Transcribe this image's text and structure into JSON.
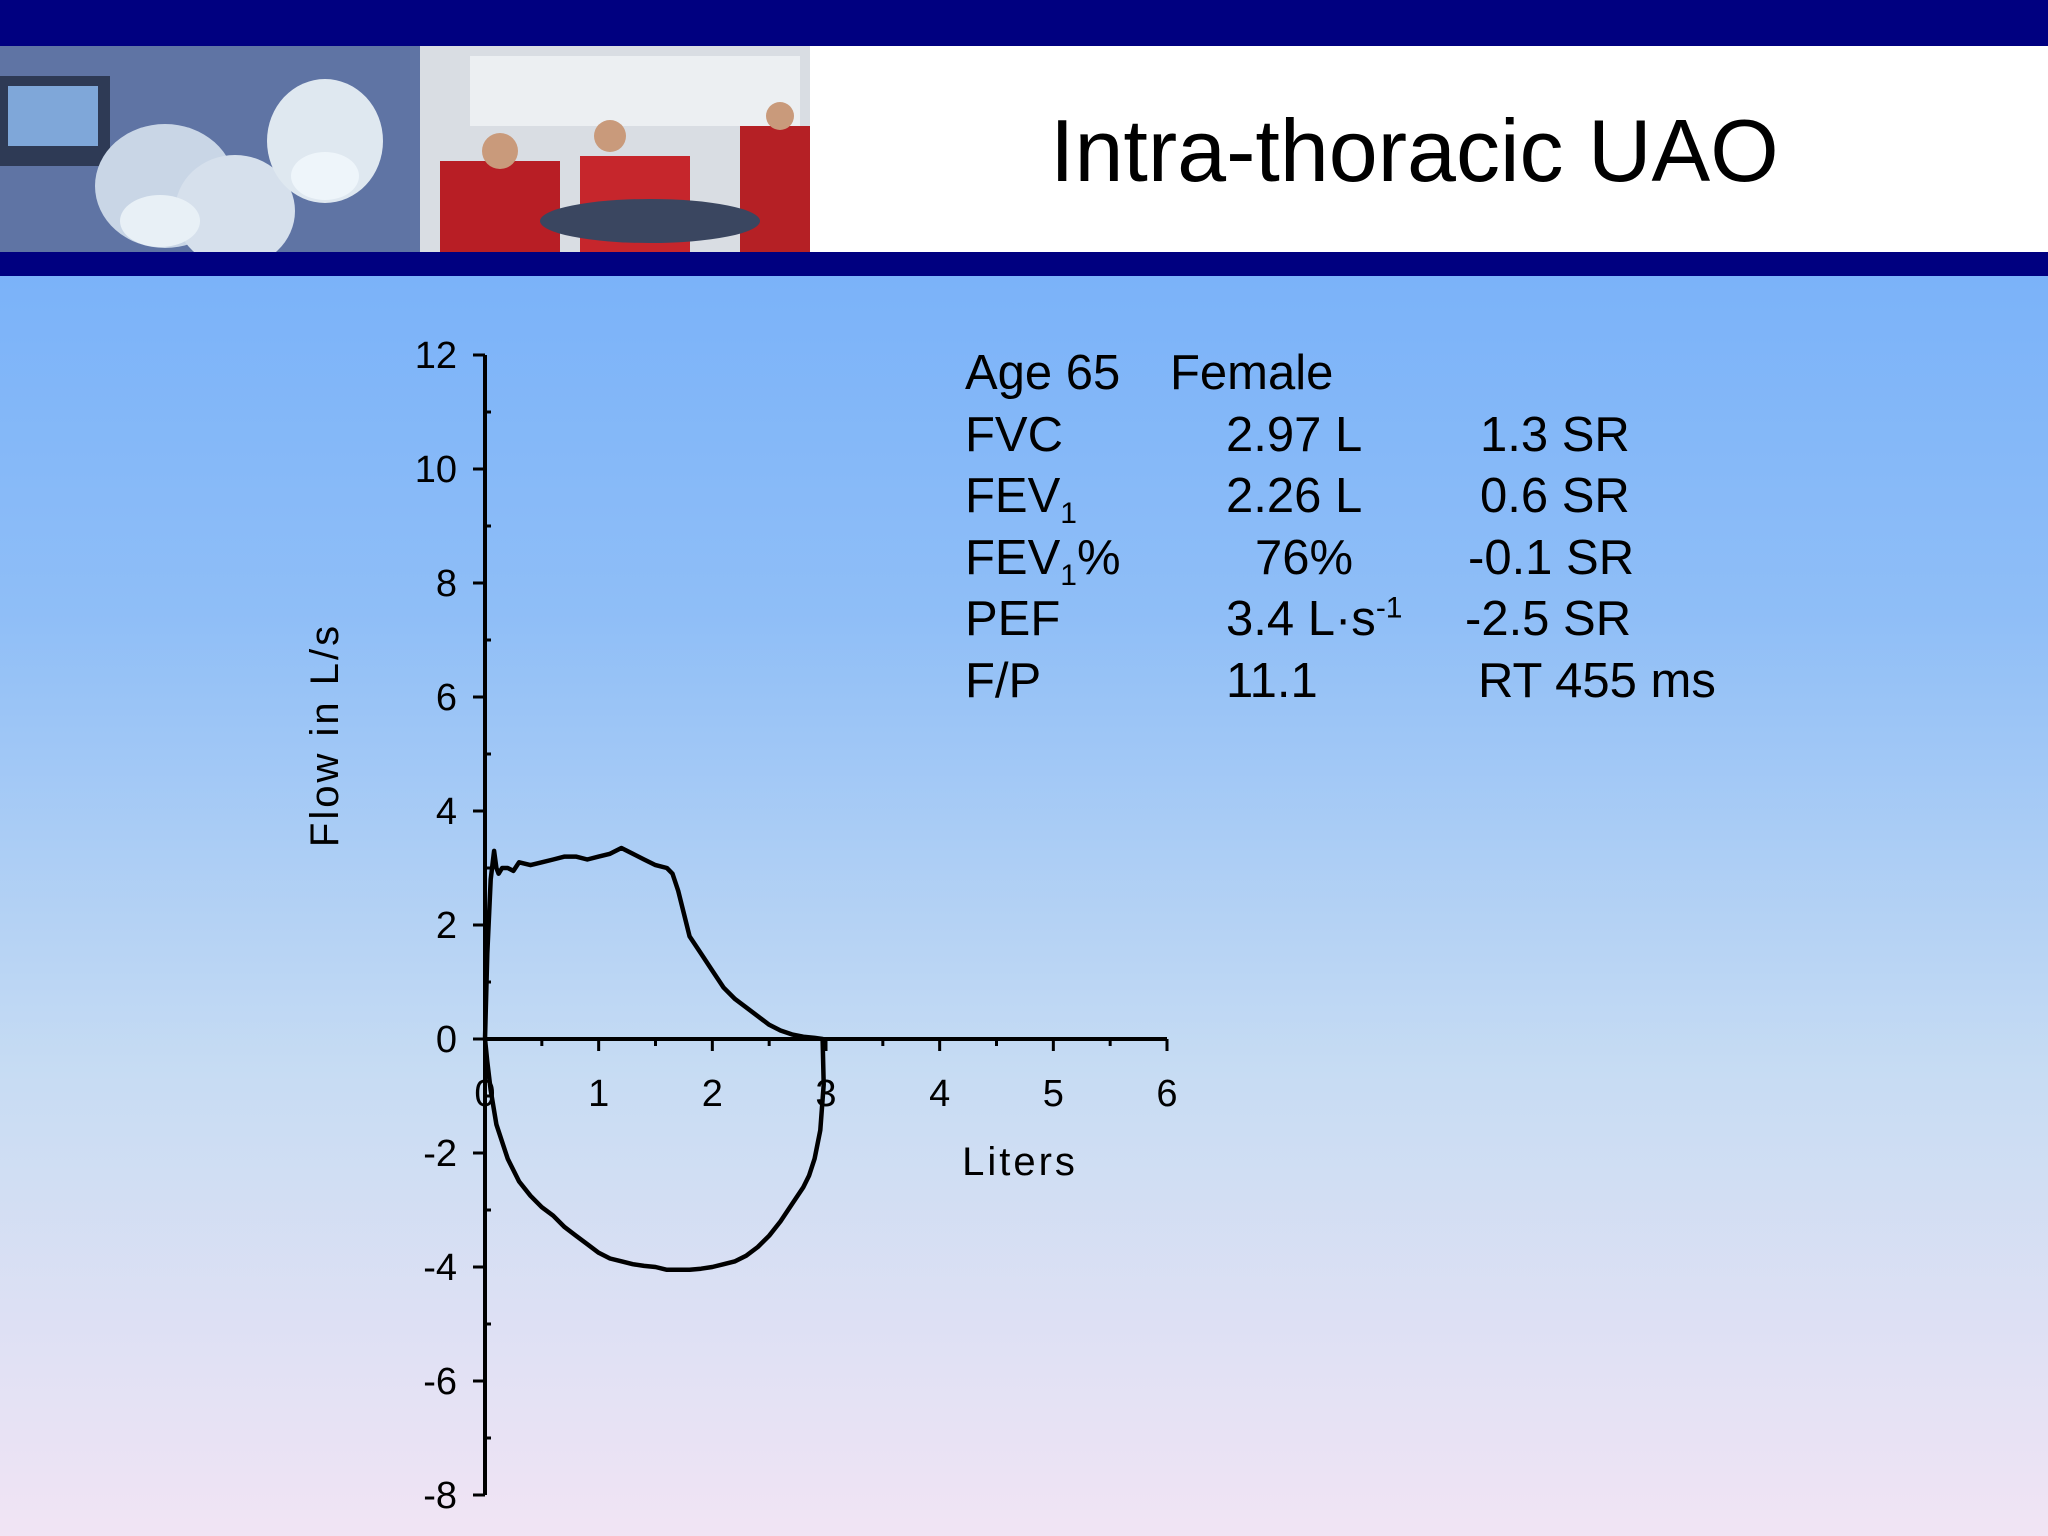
{
  "slide": {
    "title": "Intra-thoracic UAO"
  },
  "colors": {
    "band": "#000080",
    "curve": "#000000"
  },
  "stats": {
    "row0": {
      "a": "Age 65",
      "b": "Female"
    },
    "row1": {
      "label": "FVC",
      "value": "2.97 L",
      "sr": "1.3 SR"
    },
    "row2": {
      "label": "FEV",
      "sub": "1",
      "value": "2.26 L",
      "sr": "0.6 SR"
    },
    "row3": {
      "label": "FEV",
      "sub": "1",
      "suffix": "%",
      "value": "76%",
      "sr": "-0.1 SR"
    },
    "row4": {
      "label": "PEF",
      "value": "3.4 L·s",
      "sup": "-1",
      "sr": "-2.5 SR"
    },
    "row5": {
      "label": "F/P",
      "value": "11.1",
      "sr": "RT 455 ms"
    }
  },
  "chart_data": {
    "type": "line",
    "xlabel": "Liters",
    "ylabel": "Flow in L/s",
    "xlim": [
      0,
      6
    ],
    "ylim": [
      -8,
      12
    ],
    "xticks": [
      "0",
      "1",
      "2",
      "3",
      "4",
      "5",
      "6"
    ],
    "yticks": [
      "12",
      "10",
      "8",
      "6",
      "4",
      "2",
      "0",
      "-2",
      "-4",
      "-6",
      "-8"
    ],
    "grid": false,
    "series": [
      {
        "x": [
          0.0,
          0.02,
          0.05,
          0.08,
          0.1,
          0.12,
          0.15,
          0.2,
          0.25,
          0.3,
          0.4,
          0.5,
          0.6,
          0.7,
          0.8,
          0.9,
          1.0,
          1.1,
          1.2,
          1.25,
          1.3,
          1.4,
          1.5,
          1.6,
          1.65,
          1.7,
          1.75,
          1.8,
          1.9,
          2.0,
          2.1,
          2.2,
          2.3,
          2.4,
          2.5,
          2.6,
          2.7,
          2.8,
          2.9,
          2.97,
          2.98,
          2.95,
          2.9,
          2.85,
          2.8,
          2.7,
          2.6,
          2.5,
          2.4,
          2.3,
          2.2,
          2.1,
          2.0,
          1.9,
          1.8,
          1.7,
          1.6,
          1.5,
          1.4,
          1.3,
          1.2,
          1.1,
          1.0,
          0.9,
          0.8,
          0.7,
          0.6,
          0.5,
          0.4,
          0.3,
          0.2,
          0.1,
          0.05,
          0.02,
          0.0
        ],
        "y": [
          0.0,
          1.5,
          2.8,
          3.3,
          3.0,
          2.9,
          3.0,
          3.0,
          2.95,
          3.1,
          3.05,
          3.1,
          3.15,
          3.2,
          3.2,
          3.15,
          3.2,
          3.25,
          3.35,
          3.3,
          3.25,
          3.15,
          3.05,
          3.0,
          2.9,
          2.6,
          2.2,
          1.8,
          1.5,
          1.2,
          0.9,
          0.7,
          0.55,
          0.4,
          0.25,
          0.15,
          0.08,
          0.04,
          0.02,
          0.0,
          -0.8,
          -1.6,
          -2.1,
          -2.4,
          -2.6,
          -2.9,
          -3.2,
          -3.45,
          -3.65,
          -3.8,
          -3.9,
          -3.95,
          -4.0,
          -4.03,
          -4.05,
          -4.05,
          -4.05,
          -4.0,
          -3.98,
          -3.95,
          -3.9,
          -3.85,
          -3.75,
          -3.6,
          -3.45,
          -3.3,
          -3.1,
          -2.95,
          -2.75,
          -2.5,
          -2.1,
          -1.5,
          -0.9,
          -0.4,
          0.0
        ]
      }
    ]
  }
}
